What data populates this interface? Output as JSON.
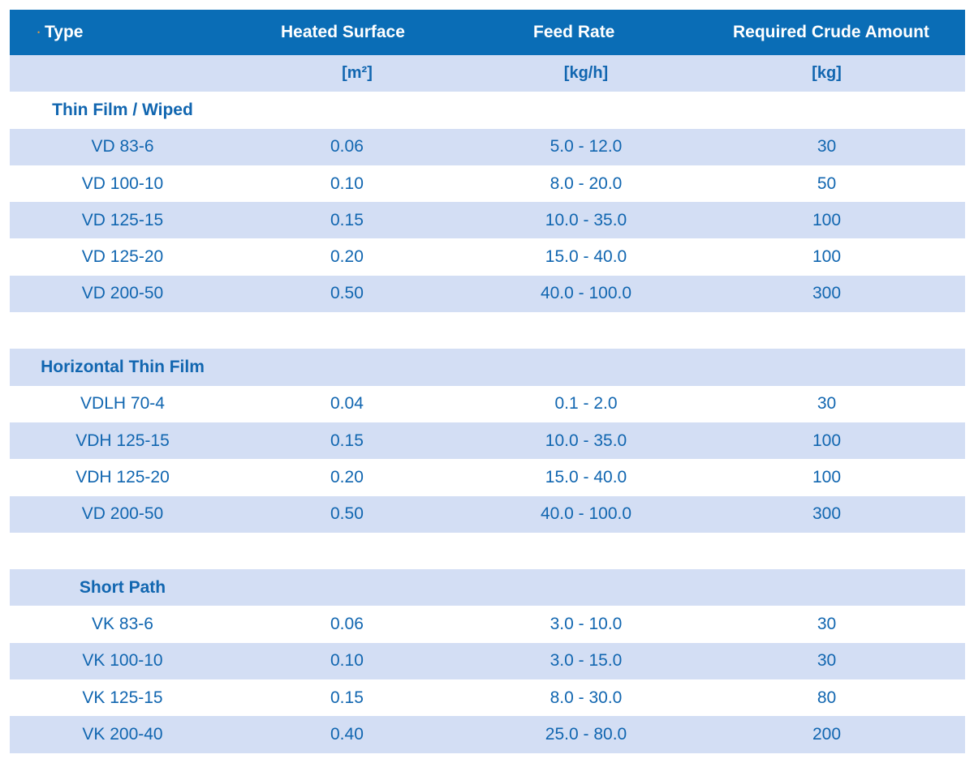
{
  "header": {
    "type": "Type",
    "heated_surface": "Heated Surface",
    "feed_rate": "Feed Rate",
    "required_crude": "Required Crude Amount"
  },
  "units": {
    "type": "",
    "heated_surface": "[m²]",
    "feed_rate": "[kg/h]",
    "required_crude": "[kg]"
  },
  "sections": [
    {
      "title": "Thin Film / Wiped",
      "rows": [
        {
          "type": "VD 83-6",
          "heated_surface": "0.06",
          "feed_rate": "5.0 - 12.0",
          "required_crude": "30"
        },
        {
          "type": "VD 100-10",
          "heated_surface": "0.10",
          "feed_rate": "8.0 - 20.0",
          "required_crude": "50"
        },
        {
          "type": "VD 125-15",
          "heated_surface": "0.15",
          "feed_rate": "10.0 - 35.0",
          "required_crude": "100"
        },
        {
          "type": "VD 125-20",
          "heated_surface": "0.20",
          "feed_rate": "15.0 - 40.0",
          "required_crude": "100"
        },
        {
          "type": "VD 200-50",
          "heated_surface": "0.50",
          "feed_rate": "40.0 - 100.0",
          "required_crude": "300"
        }
      ]
    },
    {
      "title": "Horizontal Thin Film",
      "rows": [
        {
          "type": "VDLH 70-4",
          "heated_surface": "0.04",
          "feed_rate": "0.1 - 2.0",
          "required_crude": "30"
        },
        {
          "type": "VDH 125-15",
          "heated_surface": "0.15",
          "feed_rate": "10.0 - 35.0",
          "required_crude": "100"
        },
        {
          "type": "VDH 125-20",
          "heated_surface": "0.20",
          "feed_rate": "15.0 - 40.0",
          "required_crude": "100"
        },
        {
          "type": "VD 200-50",
          "heated_surface": "0.50",
          "feed_rate": "40.0 - 100.0",
          "required_crude": "300"
        }
      ]
    },
    {
      "title": "Short Path",
      "rows": [
        {
          "type": "VK 83-6",
          "heated_surface": "0.06",
          "feed_rate": "3.0 - 10.0",
          "required_crude": "30"
        },
        {
          "type": "VK 100-10",
          "heated_surface": "0.10",
          "feed_rate": "3.0 - 15.0",
          "required_crude": "30"
        },
        {
          "type": "VK 125-15",
          "heated_surface": "0.15",
          "feed_rate": "8.0 - 30.0",
          "required_crude": "80"
        },
        {
          "type": "VK 200-40",
          "heated_surface": "0.40",
          "feed_rate": "25.0 - 80.0",
          "required_crude": "200"
        }
      ]
    }
  ],
  "colors": {
    "header_bg": "#0a6db6",
    "alt_row_bg": "#d3def4",
    "text": "#1166b0"
  }
}
